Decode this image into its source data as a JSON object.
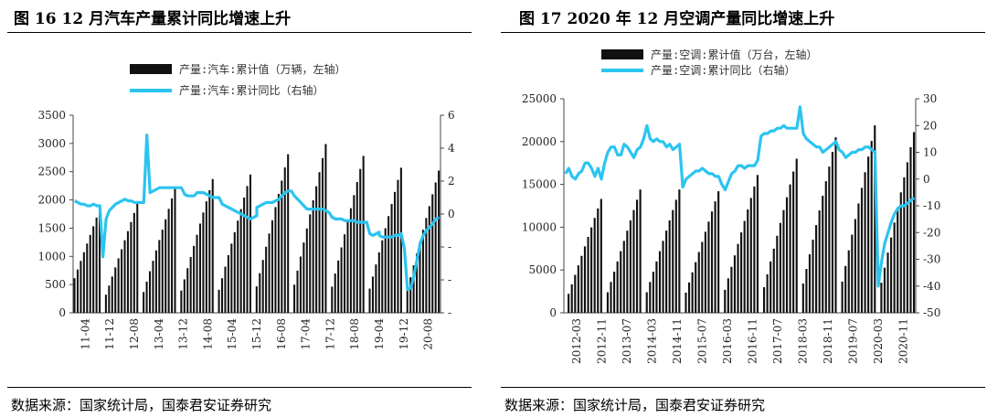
{
  "left": {
    "title": "图 16   12 月汽车产量累计同比增速上升",
    "source": "数据来源：国家统计局，国泰君安证券研究"
  },
  "right": {
    "title": "图 17   2020 年 12 月空调产量同比增速上升",
    "source": "数据来源：国家统计局，国泰君安证券研究"
  },
  "colors": {
    "bar": "#111111",
    "line": "#2BC4F0"
  },
  "chart_data": [
    {
      "type": "bar+line",
      "legend": [
        "产量:汽车:累计值（万辆，左轴）",
        "产量:汽车:累计同比（右轴）"
      ],
      "y_left_ticks": [
        "0",
        "500",
        "1000",
        "1500",
        "2000",
        "2500",
        "3000",
        "3500"
      ],
      "y_left_range": [
        0,
        3500
      ],
      "y_right_ticks": [
        "-",
        "-",
        "-",
        "0",
        "2",
        "4",
        "6"
      ],
      "y_right_range": [
        -6,
        6
      ],
      "x_tick_labels": [
        "11-04",
        "11-12",
        "12-08",
        "13-04",
        "13-12",
        "14-08",
        "15-04",
        "15-12",
        "16-08",
        "17-04",
        "17-12",
        "18-08",
        "19-04",
        "19-12",
        "20-08"
      ],
      "start_year": 2011,
      "start_month": 4,
      "end_year": 2020,
      "end_month": 12,
      "annual_totals": [
        1840,
        1930,
        2210,
        2370,
        2450,
        2810,
        2990,
        2780,
        2570,
        2520
      ],
      "line_values": [
        0.8,
        0.7,
        0.6,
        0.6,
        0.5,
        0.5,
        0.6,
        0.5,
        0.5,
        -2.6,
        -0.3,
        0.2,
        0.4,
        0.6,
        0.7,
        0.8,
        0.9,
        0.8,
        0.8,
        0.7,
        0.7,
        0.7,
        0.7,
        0.7,
        4.8,
        1.3,
        1.4,
        1.5,
        1.6,
        1.6,
        1.6,
        1.6,
        1.6,
        1.6,
        1.6,
        1.6,
        1.2,
        1.1,
        1.1,
        1.1,
        1.3,
        1.3,
        1.3,
        1.2,
        1.1,
        1.0,
        1.0,
        1.0,
        0.6,
        0.5,
        0.4,
        0.3,
        0.2,
        0.1,
        0.0,
        -0.1,
        -0.2,
        -0.3,
        -0.2,
        -0.1,
        0.4,
        0.5,
        0.6,
        0.7,
        0.7,
        0.7,
        0.8,
        0.9,
        1.1,
        1.3,
        1.4,
        1.4,
        1.1,
        0.9,
        0.7,
        0.5,
        0.3,
        0.3,
        0.3,
        0.3,
        0.3,
        0.3,
        0.2,
        0.1,
        -0.2,
        -0.3,
        -0.3,
        -0.3,
        -0.4,
        -0.4,
        -0.4,
        -0.4,
        -0.5,
        -0.5,
        -0.5,
        -0.5,
        -1.2,
        -1.3,
        -1.2,
        -1.1,
        -1.3,
        -1.4,
        -1.4,
        -1.4,
        -1.4,
        -1.3,
        -1.3,
        -1.2,
        -2.1,
        -4.6,
        -4.5,
        -3.8,
        -2.8,
        -1.8,
        -1.3,
        -1.0,
        -0.8,
        -0.6,
        -0.3,
        -0.2
      ],
      "line_note": "right-axis percent-scaled shape"
    },
    {
      "type": "bar+line",
      "legend": [
        "产量:空调:累计值（万台，左轴）",
        "产量:空调:累计同比（右轴）"
      ],
      "y_left_ticks": [
        "0",
        "5000",
        "10000",
        "15000",
        "20000",
        "25000"
      ],
      "y_left_range": [
        0,
        25000
      ],
      "y_right_ticks": [
        "-50",
        "-40",
        "-30",
        "-20",
        "-10",
        "0",
        "10",
        "20",
        "30"
      ],
      "y_right_range": [
        -50,
        30
      ],
      "x_tick_labels": [
        "2012-03",
        "2012-11",
        "2013-07",
        "2014-03",
        "2014-11",
        "2015-07",
        "2016-03",
        "2016-11",
        "2017-07",
        "2018-03",
        "2018-11",
        "2019-07",
        "2020-03",
        "2020-11"
      ],
      "start_year": 2012,
      "start_month": 1,
      "end_year": 2020,
      "end_month": 12,
      "annual_totals": [
        13300,
        14400,
        14400,
        14200,
        16100,
        18000,
        20500,
        21900,
        21100
      ],
      "line_values": [
        2,
        4,
        1,
        0,
        2,
        3,
        6,
        6,
        4,
        1,
        4,
        0,
        6,
        10,
        12,
        12,
        9,
        9,
        13,
        12,
        10,
        8,
        11,
        12,
        15,
        20,
        15,
        14,
        15,
        14,
        14,
        12,
        13,
        11,
        12,
        13,
        -3,
        0,
        1,
        2,
        3,
        3,
        4,
        3,
        2,
        2,
        1,
        1,
        -2,
        -4,
        -1,
        2,
        3,
        5,
        5,
        4,
        5,
        5,
        5,
        7,
        16,
        17,
        17,
        18,
        18,
        19,
        19,
        20,
        19,
        19,
        19,
        19,
        27,
        17,
        15,
        14,
        13,
        12,
        12,
        10,
        11,
        12,
        13,
        14,
        11,
        10,
        8,
        9,
        10,
        10,
        11,
        11,
        12,
        12,
        11,
        10,
        -40,
        -31,
        -24,
        -20,
        -16,
        -13,
        -11,
        -10,
        -10,
        -9,
        -8,
        -7
      ]
    }
  ]
}
